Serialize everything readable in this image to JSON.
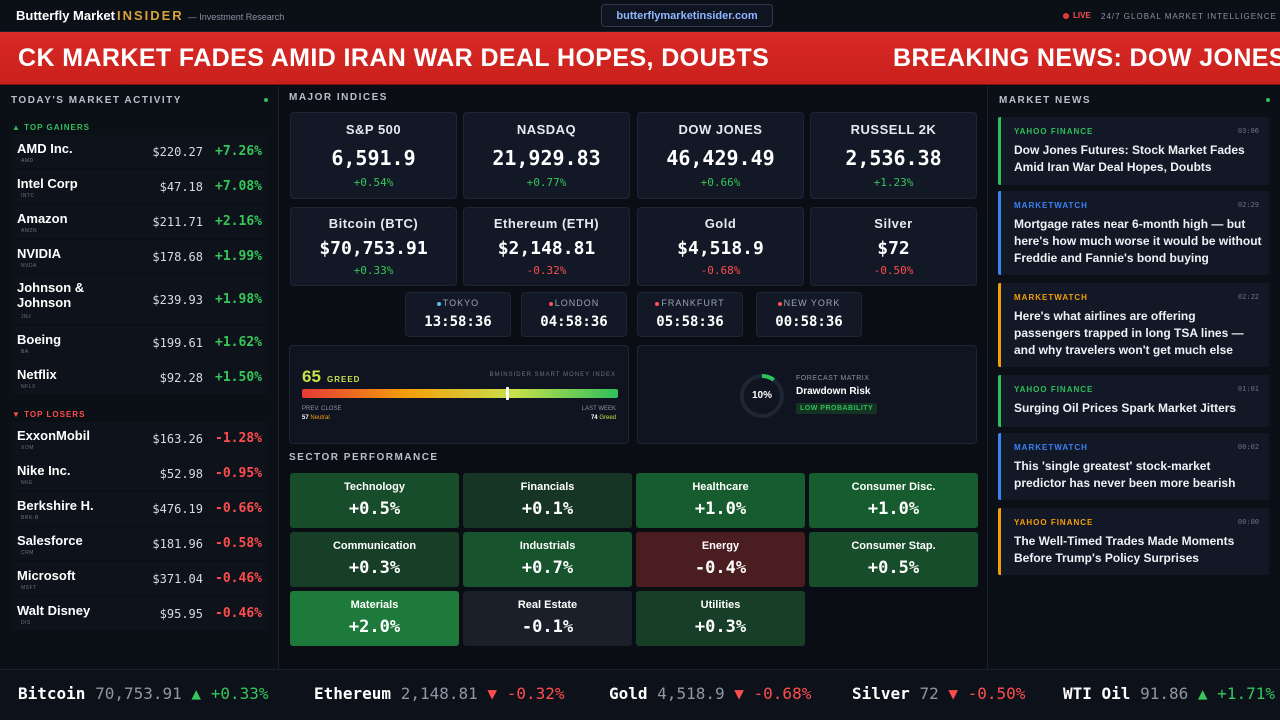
{
  "header": {
    "brand_main": "Butterfly Market",
    "brand_accent": "INSIDER",
    "brand_sub": "— Investment Research",
    "url": "butterflymarketinsider.com",
    "live": "LIVE",
    "tagline": "24/7 GLOBAL MARKET INTELLIGENCE"
  },
  "banner": {
    "text1": "CK MARKET FADES AMID IRAN WAR DEAL HOPES, DOUBTS",
    "text2": "BREAKING NEWS: DOW JONES"
  },
  "market_activity": {
    "title": "TODAY'S MARKET ACTIVITY",
    "gainers_label": "▲ TOP GAINERS",
    "losers_label": "▼ TOP LOSERS",
    "gainers": [
      {
        "name": "AMD Inc.",
        "ticker": "AMD",
        "price": "$220.27",
        "change": "+7.26%"
      },
      {
        "name": "Intel Corp",
        "ticker": "INTC",
        "price": "$47.18",
        "change": "+7.08%"
      },
      {
        "name": "Amazon",
        "ticker": "AMZN",
        "price": "$211.71",
        "change": "+2.16%"
      },
      {
        "name": "NVIDIA",
        "ticker": "NVDA",
        "price": "$178.68",
        "change": "+1.99%"
      },
      {
        "name": "Johnson & Johnson",
        "ticker": "JNJ",
        "price": "$239.93",
        "change": "+1.98%"
      },
      {
        "name": "Boeing",
        "ticker": "BA",
        "price": "$199.61",
        "change": "+1.62%"
      },
      {
        "name": "Netflix",
        "ticker": "NFLX",
        "price": "$92.28",
        "change": "+1.50%"
      }
    ],
    "losers": [
      {
        "name": "ExxonMobil",
        "ticker": "XOM",
        "price": "$163.26",
        "change": "-1.28%"
      },
      {
        "name": "Nike Inc.",
        "ticker": "NKE",
        "price": "$52.98",
        "change": "-0.95%"
      },
      {
        "name": "Berkshire H.",
        "ticker": "BRK-B",
        "price": "$476.19",
        "change": "-0.66%"
      },
      {
        "name": "Salesforce",
        "ticker": "CRM",
        "price": "$181.96",
        "change": "-0.58%"
      },
      {
        "name": "Microsoft",
        "ticker": "MSFT",
        "price": "$371.04",
        "change": "-0.46%"
      },
      {
        "name": "Walt Disney",
        "ticker": "DIS",
        "price": "$95.95",
        "change": "-0.46%"
      }
    ]
  },
  "indices": {
    "title": "MAJOR INDICES",
    "items": [
      {
        "name": "S&P 500",
        "value": "6,591.9",
        "change": "+0.54%",
        "dir": "up"
      },
      {
        "name": "NASDAQ",
        "value": "21,929.83",
        "change": "+0.77%",
        "dir": "up"
      },
      {
        "name": "DOW JONES",
        "value": "46,429.49",
        "change": "+0.66%",
        "dir": "up"
      },
      {
        "name": "RUSSELL 2K",
        "value": "2,536.38",
        "change": "+1.23%",
        "dir": "up"
      },
      {
        "name": "Bitcoin (BTC)",
        "value": "$70,753.91",
        "change": "+0.33%",
        "dir": "up"
      },
      {
        "name": "Ethereum (ETH)",
        "value": "$2,148.81",
        "change": "-0.32%",
        "dir": "down"
      },
      {
        "name": "Gold",
        "value": "$4,518.9",
        "change": "-0.68%",
        "dir": "down"
      },
      {
        "name": "Silver",
        "value": "$72",
        "change": "-0.50%",
        "dir": "down"
      }
    ]
  },
  "clocks": [
    {
      "city": "TOKYO",
      "time": "13:58:36",
      "dot": "#4fc3f7"
    },
    {
      "city": "LONDON",
      "time": "04:58:36",
      "dot": "#ff5252"
    },
    {
      "city": "FRANKFURT",
      "time": "05:58:36",
      "dot": "#ff5252"
    },
    {
      "city": "NEW YORK",
      "time": "00:58:36",
      "dot": "#ff5252"
    }
  ],
  "greed": {
    "value": "65",
    "label": "GREED",
    "title": "BMINSIDER SMART MONEY INDEX",
    "prev_label": "PREV. CLOSE",
    "prev_value": "57",
    "prev_state": "Neutral",
    "week_label": "LAST WEEK",
    "week_value": "74",
    "week_state": "Greed",
    "level": 0.65
  },
  "forecast": {
    "percent": "10%",
    "level": 0.1,
    "title": "FORECAST MATRIX",
    "name": "Drawdown Risk",
    "badge": "LOW PROBABILITY"
  },
  "sectors": {
    "title": "SECTOR PERFORMANCE",
    "items": [
      {
        "name": "Technology",
        "value": "+0.5%",
        "color": "#174d2a"
      },
      {
        "name": "Financials",
        "value": "+0.1%",
        "color": "#173524"
      },
      {
        "name": "Healthcare",
        "value": "+1.0%",
        "color": "#175c2e"
      },
      {
        "name": "Consumer Disc.",
        "value": "+1.0%",
        "color": "#175c2e"
      },
      {
        "name": "Communication",
        "value": "+0.3%",
        "color": "#173f27"
      },
      {
        "name": "Industrials",
        "value": "+0.7%",
        "color": "#17532c"
      },
      {
        "name": "Energy",
        "value": "-0.4%",
        "color": "#4a1d20"
      },
      {
        "name": "Consumer Stap.",
        "value": "+0.5%",
        "color": "#174d2a"
      },
      {
        "name": "Materials",
        "value": "+2.0%",
        "color": "#1d7a3a"
      },
      {
        "name": "Real Estate",
        "value": "-0.1%",
        "color": "#1b1f2a"
      },
      {
        "name": "Utilities",
        "value": "+0.3%",
        "color": "#173f27"
      }
    ]
  },
  "news": {
    "title": "MARKET NEWS",
    "items": [
      {
        "source": "YAHOO FINANCE",
        "time": "03:06",
        "headline": "Dow Jones Futures: Stock Market Fades Amid Iran War Deal Hopes, Doubts",
        "color": "#2fbf5b"
      },
      {
        "source": "MARKETWATCH",
        "time": "02:29",
        "headline": "Mortgage rates near 6-month high — but here's how much worse it would be without Freddie and Fannie's bond buying",
        "color": "#3b82f6"
      },
      {
        "source": "MARKETWATCH",
        "time": "02:22",
        "headline": "Here's what airlines are offering passengers trapped in long TSA lines — and why travelers won't get much else",
        "color": "#f59e0b"
      },
      {
        "source": "YAHOO FINANCE",
        "time": "01:01",
        "headline": "Surging Oil Prices Spark Market Jitters",
        "color": "#2fbf5b"
      },
      {
        "source": "MARKETWATCH",
        "time": "00:02",
        "headline": "This 'single greatest' stock-market predictor has never been more bearish",
        "color": "#3b82f6"
      },
      {
        "source": "YAHOO FINANCE",
        "time": "00:00",
        "headline": "The Well-Timed Trades Made Moments Before Trump's Policy Surprises",
        "color": "#f59e0b"
      }
    ]
  },
  "ticker": [
    {
      "name": "Bitcoin",
      "price": "70,753.91",
      "arrow": "▲",
      "change": "+0.33%",
      "dir": "up"
    },
    {
      "name": "Ethereum",
      "price": "2,148.81",
      "arrow": "▼",
      "change": "-0.32%",
      "dir": "down"
    },
    {
      "name": "Gold",
      "price": "4,518.9",
      "arrow": "▼",
      "change": "-0.68%",
      "dir": "down"
    },
    {
      "name": "Silver",
      "price": "72",
      "arrow": "▼",
      "change": "-0.50%",
      "dir": "down"
    },
    {
      "name": "WTI Oil",
      "price": "91.86",
      "arrow": "▲",
      "change": "+1.71%",
      "dir": "up"
    }
  ]
}
